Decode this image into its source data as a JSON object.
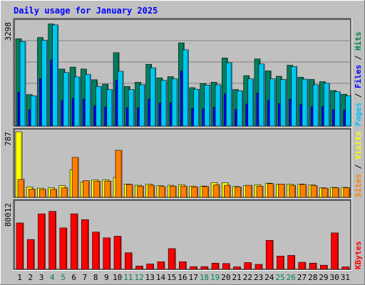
{
  "chart_data": [
    {
      "type": "bar",
      "title": "Daily usage for January 2025",
      "ymax_label": "3298",
      "right_label_parts": [
        {
          "text": "Pages",
          "color": "#00c0ff"
        },
        {
          "text": " / ",
          "color": "#000000"
        },
        {
          "text": "Files",
          "color": "#0000ff"
        },
        {
          "text": " / ",
          "color": "#000000"
        },
        {
          "text": "Hits",
          "color": "#008040"
        }
      ],
      "categories": [
        "1",
        "2",
        "3",
        "4",
        "5",
        "6",
        "7",
        "8",
        "9",
        "10",
        "11",
        "12",
        "13",
        "14",
        "15",
        "16",
        "17",
        "18",
        "19",
        "20",
        "21",
        "22",
        "23",
        "24",
        "25",
        "26",
        "27",
        "28",
        "29",
        "30",
        "31"
      ],
      "weekend_days": [
        "4",
        "5",
        "11",
        "12",
        "18",
        "19",
        "25",
        "26"
      ],
      "series": [
        {
          "name": "Hits",
          "color": "#008060",
          "values": [
            2770,
            1000,
            2810,
            3240,
            1810,
            1870,
            1810,
            1470,
            1330,
            2330,
            1260,
            1390,
            1960,
            1530,
            1570,
            2640,
            1220,
            1350,
            1390,
            2160,
            1160,
            1600,
            2130,
            1750,
            1580,
            1930,
            1550,
            1480,
            1410,
            1130,
            1010
          ]
        },
        {
          "name": "Files",
          "color": "#0000ff",
          "values": [
            1080,
            520,
            1500,
            2100,
            820,
            880,
            860,
            640,
            610,
            1460,
            580,
            580,
            850,
            730,
            740,
            1750,
            560,
            550,
            600,
            1020,
            530,
            700,
            1050,
            820,
            720,
            850,
            680,
            610,
            620,
            520,
            500
          ]
        },
        {
          "name": "Pages",
          "color": "#00c8f0",
          "values": [
            2680,
            960,
            2720,
            3210,
            1700,
            1560,
            1640,
            1260,
            1160,
            1740,
            1160,
            1310,
            1850,
            1450,
            1500,
            2420,
            1170,
            1300,
            1310,
            2010,
            1120,
            1500,
            1970,
            1500,
            1480,
            1890,
            1490,
            1310,
            1360,
            1090,
            960
          ]
        }
      ]
    },
    {
      "type": "bar",
      "ymax_label": "787",
      "right_label_parts": [
        {
          "text": "Sites",
          "color": "#ff8000"
        },
        {
          "text": " / ",
          "color": "#000000"
        },
        {
          "text": "Visits",
          "color": "#ffff00"
        }
      ],
      "categories": [
        "1",
        "2",
        "3",
        "4",
        "5",
        "6",
        "7",
        "8",
        "9",
        "10",
        "11",
        "12",
        "13",
        "14",
        "15",
        "16",
        "17",
        "18",
        "19",
        "20",
        "21",
        "22",
        "23",
        "24",
        "25",
        "26",
        "27",
        "28",
        "29",
        "30",
        "31"
      ],
      "series": [
        {
          "name": "Visits",
          "color": "#ffff00",
          "values": [
            787,
            125,
            110,
            115,
            140,
            330,
            185,
            210,
            210,
            240,
            160,
            145,
            160,
            140,
            145,
            150,
            135,
            135,
            175,
            175,
            130,
            140,
            150,
            170,
            160,
            160,
            160,
            150,
            115,
            120,
            120
          ]
        },
        {
          "name": "Sites",
          "color": "#ff8000",
          "values": [
            215,
            100,
            95,
            95,
            115,
            480,
            200,
            195,
            195,
            565,
            155,
            135,
            145,
            130,
            135,
            135,
            125,
            130,
            150,
            145,
            125,
            145,
            135,
            165,
            160,
            145,
            155,
            140,
            110,
            115,
            115
          ]
        }
      ]
    },
    {
      "type": "bar",
      "ymax_label": "80012",
      "right_label_parts": [
        {
          "text": "KBytes",
          "color": "#ff0000"
        }
      ],
      "categories": [
        "1",
        "2",
        "3",
        "4",
        "5",
        "6",
        "7",
        "8",
        "9",
        "10",
        "11",
        "12",
        "13",
        "14",
        "15",
        "16",
        "17",
        "18",
        "19",
        "20",
        "21",
        "22",
        "23",
        "24",
        "25",
        "26",
        "27",
        "28",
        "29",
        "30",
        "31"
      ],
      "series": [
        {
          "name": "KBytes",
          "color": "#ff0000",
          "values": [
            56000,
            36000,
            67000,
            70000,
            50000,
            67000,
            60000,
            45000,
            38000,
            40000,
            20000,
            4000,
            6500,
            9200,
            25000,
            9200,
            3300,
            3300,
            7500,
            7000,
            3000,
            8200,
            6000,
            35000,
            16000,
            16800,
            8500,
            7500,
            5000,
            44000,
            3000
          ]
        }
      ]
    }
  ]
}
